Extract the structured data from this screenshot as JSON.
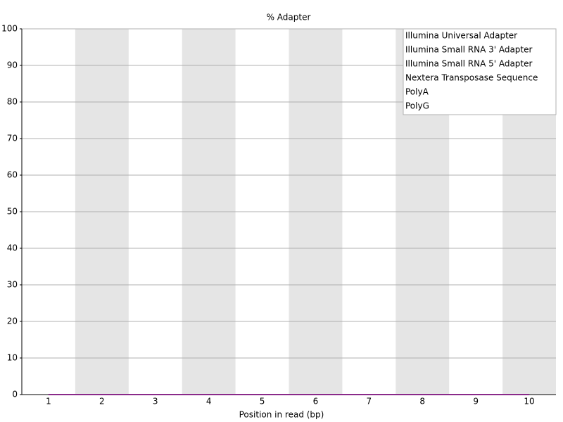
{
  "chart_data": {
    "type": "line",
    "title": "% Adapter",
    "x_label": "Position in read (bp)",
    "categories": [
      1,
      2,
      3,
      4,
      5,
      6,
      7,
      8,
      9,
      10
    ],
    "series": [
      {
        "name": "Illumina Universal Adapter",
        "color": "#800f3f",
        "values": [
          0,
          0,
          0,
          0,
          0,
          0,
          0,
          0,
          0,
          0
        ]
      },
      {
        "name": "Illumina Small RNA 3' Adapter",
        "color": "#201a6b",
        "values": [
          0,
          0,
          0,
          0,
          0,
          0,
          0,
          0,
          0,
          0
        ]
      },
      {
        "name": "Illumina Small RNA 5' Adapter",
        "color": "#0f6b20",
        "values": [
          0,
          0,
          0,
          0,
          0,
          0,
          0,
          0,
          0,
          0
        ]
      },
      {
        "name": "Nextera Transposase Sequence",
        "color": "#d9c27a",
        "values": [
          0,
          0,
          0,
          0,
          0,
          0,
          0,
          0,
          0,
          0
        ]
      },
      {
        "name": "PolyA",
        "color": "#3aa89a",
        "values": [
          0,
          0,
          0,
          0,
          0,
          0,
          0,
          0,
          0,
          0
        ]
      },
      {
        "name": "PolyG",
        "color": "#8a2a8a",
        "values": [
          0,
          0,
          0,
          0,
          0,
          0,
          0,
          0,
          0,
          0
        ]
      }
    ],
    "ylim": [
      0,
      100
    ],
    "yticks": [
      0,
      10,
      20,
      30,
      40,
      50,
      60,
      70,
      80,
      90,
      100
    ],
    "grid": true,
    "legend": "top-right"
  }
}
